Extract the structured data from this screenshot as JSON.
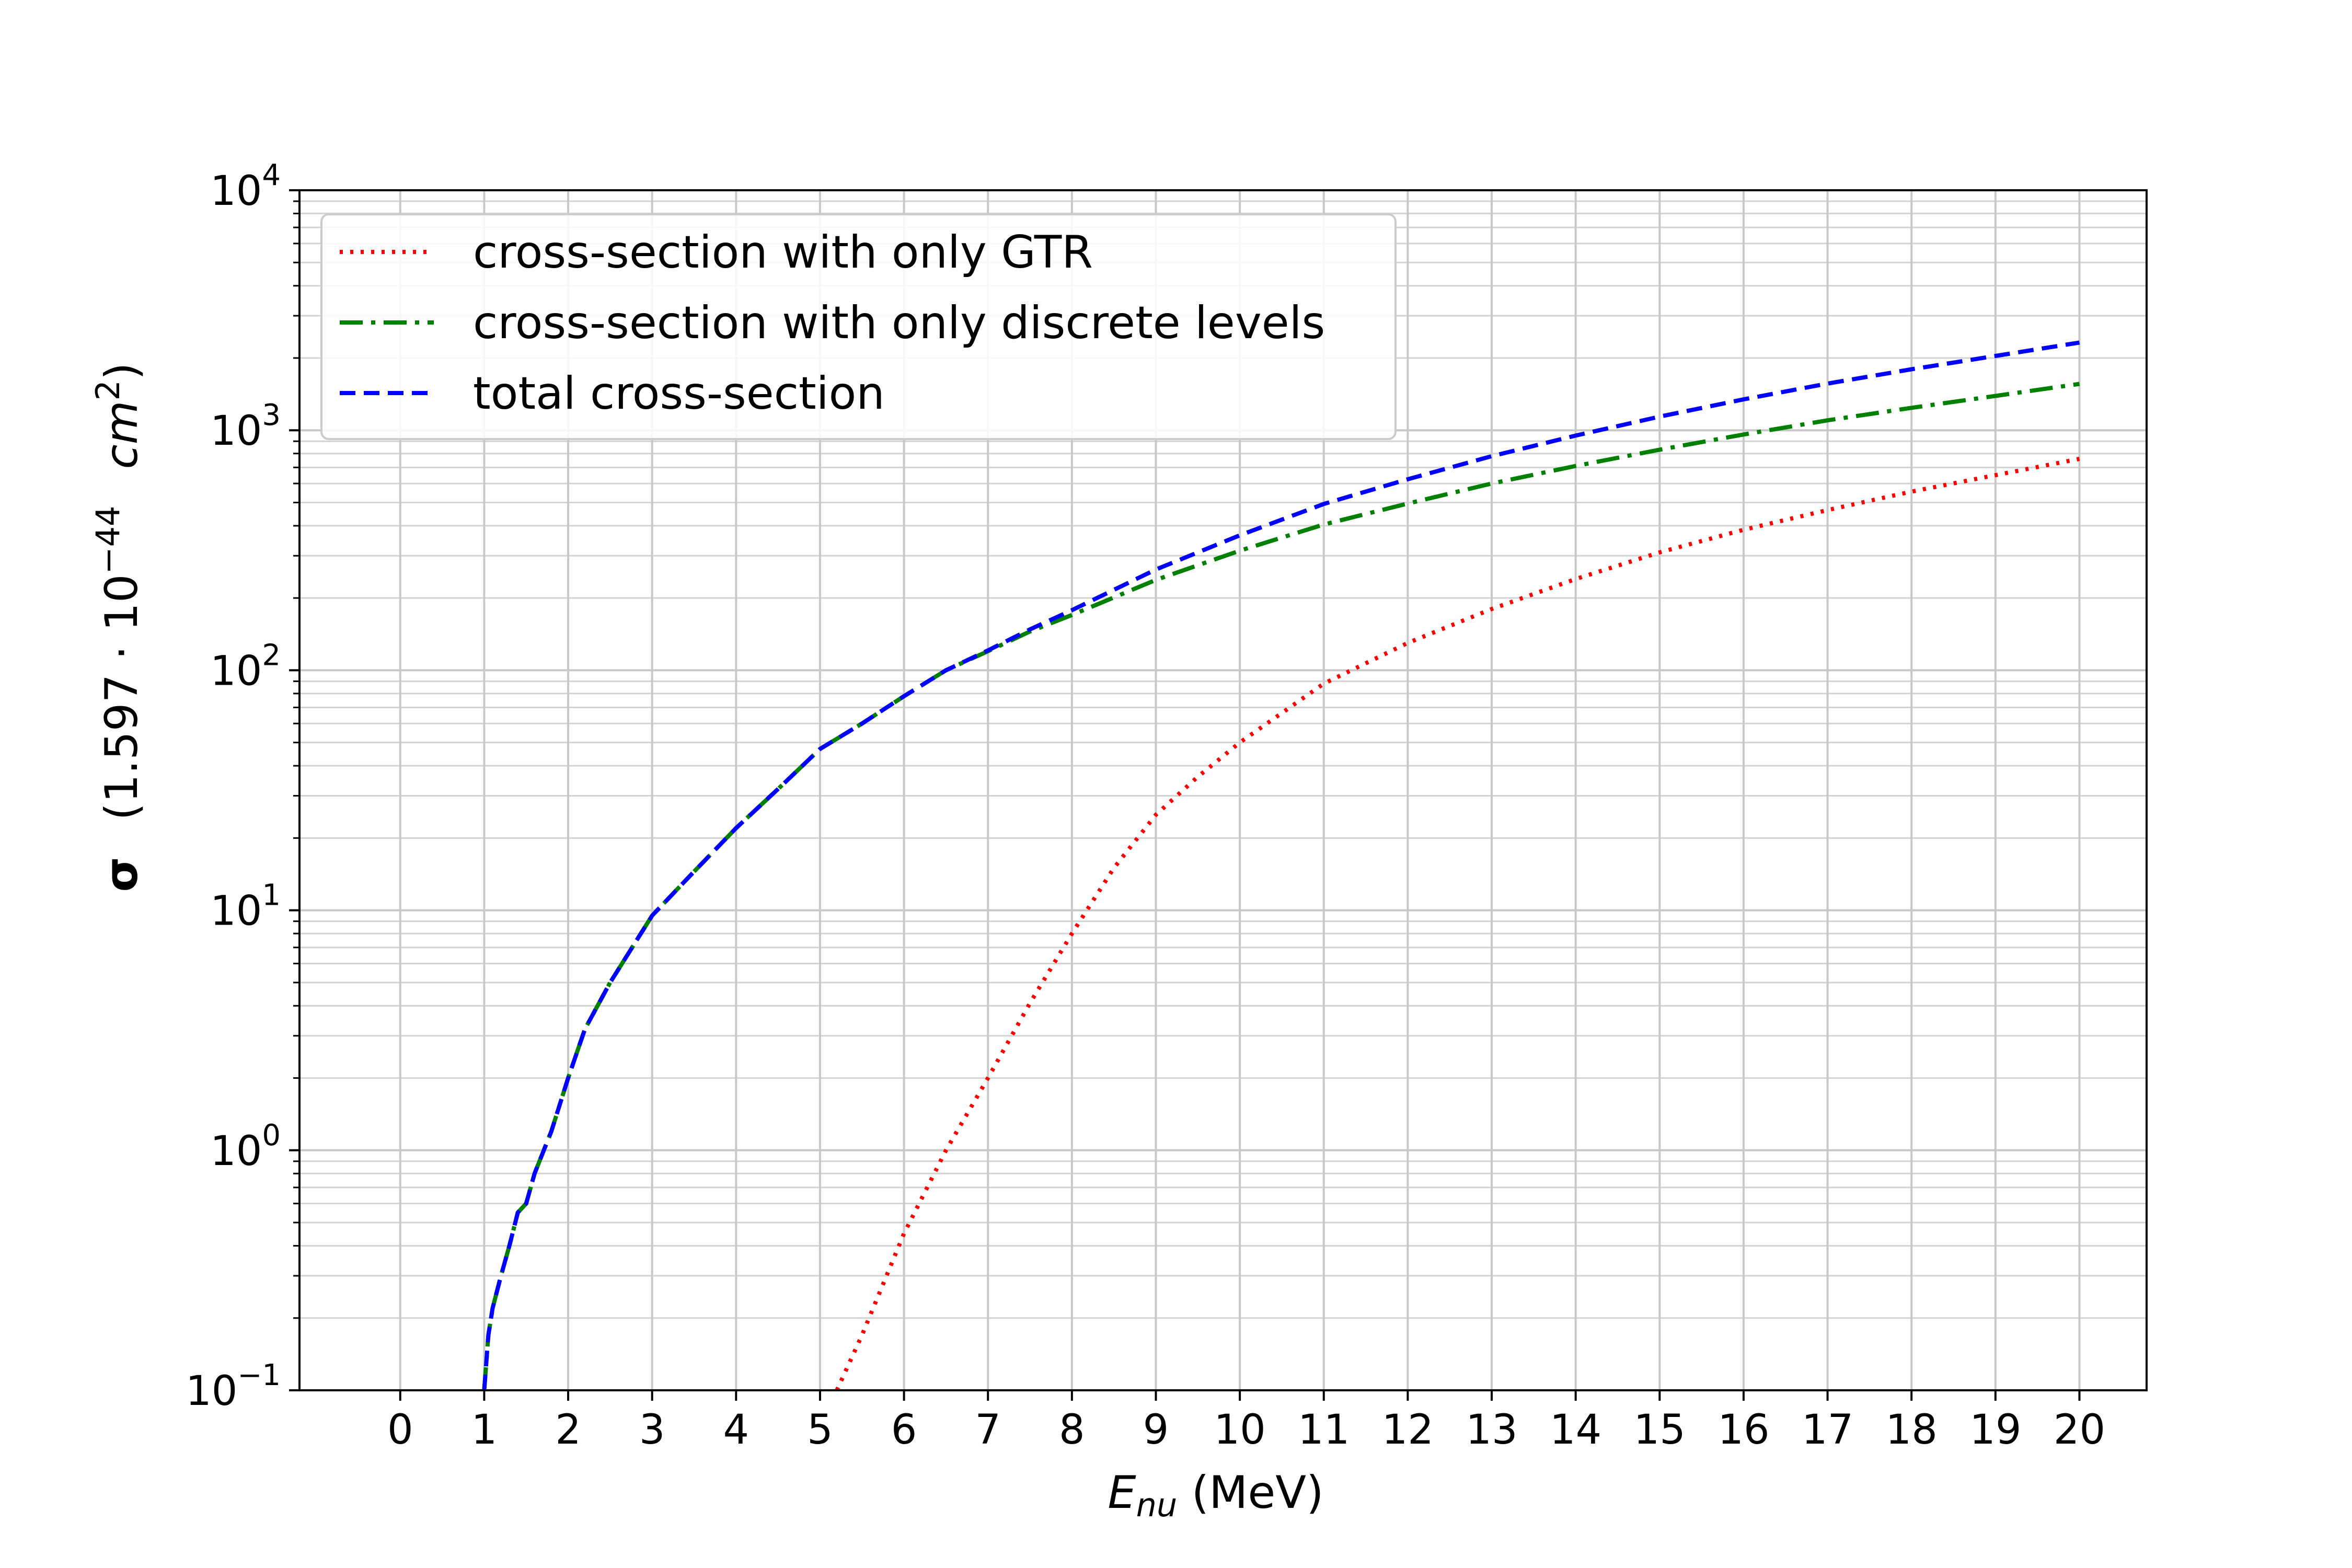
{
  "chart_data": {
    "type": "line",
    "yscale": "log",
    "xlabel": {
      "main": "E",
      "sub": "nu",
      "unit": " (MeV)"
    },
    "ylabel": {
      "symbol": "σ",
      "open": "(1.597 · 10",
      "exp": "−44",
      "unit": "cm",
      "unit_exp": "2",
      "close": ")"
    },
    "xlim": [
      -1.2,
      20.8
    ],
    "ylim": [
      0.1,
      10000
    ],
    "xticks": [
      0,
      1,
      2,
      3,
      4,
      5,
      6,
      7,
      8,
      9,
      10,
      11,
      12,
      13,
      14,
      15,
      16,
      17,
      18,
      19,
      20
    ],
    "yticks": [
      {
        "value": 0.1,
        "base": "10",
        "exp": "−1"
      },
      {
        "value": 1,
        "base": "10",
        "exp": "0"
      },
      {
        "value": 10,
        "base": "10",
        "exp": "1"
      },
      {
        "value": 100,
        "base": "10",
        "exp": "2"
      },
      {
        "value": 1000,
        "base": "10",
        "exp": "3"
      },
      {
        "value": 10000,
        "base": "10",
        "exp": "4"
      }
    ],
    "grid": true,
    "legend_position": "upper-left",
    "series": [
      {
        "name": "cross-section with only GTR",
        "color": "#ff0000",
        "style": "dotted",
        "x": [
          5.2,
          5.5,
          6.0,
          6.5,
          7.0,
          7.5,
          8.0,
          8.5,
          9.0,
          9.5,
          10.0,
          11.0,
          12.0,
          13.0,
          14.0,
          15.0,
          16.0,
          17.0,
          18.0,
          19.0,
          20.0
        ],
        "y": [
          0.1,
          0.17,
          0.45,
          1.0,
          2.0,
          4.1,
          8.0,
          15.0,
          25.0,
          36.0,
          50.0,
          88.0,
          130.0,
          180.0,
          240.0,
          310.0,
          385.0,
          465.0,
          555.0,
          650.0,
          760.0
        ]
      },
      {
        "name": "cross-section with only discrete levels",
        "color": "#008000",
        "style": "dashdot",
        "x": [
          1.0,
          1.05,
          1.1,
          1.2,
          1.3,
          1.4,
          1.5,
          1.6,
          1.8,
          2.0,
          2.2,
          2.5,
          3.0,
          3.5,
          4.0,
          4.5,
          5.0,
          5.5,
          6.0,
          6.5,
          7.0,
          7.5,
          8.0,
          9.0,
          10.0,
          11.0,
          12.0,
          13.0,
          14.0,
          15.0,
          16.0,
          17.0,
          18.0,
          19.0,
          20.0
        ],
        "y": [
          0.1,
          0.17,
          0.22,
          0.3,
          0.4,
          0.55,
          0.6,
          0.8,
          1.2,
          2.0,
          3.2,
          5.0,
          9.5,
          14.5,
          22.0,
          32.0,
          47.0,
          60.0,
          78.0,
          100.0,
          120.0,
          145.0,
          170.0,
          238.0,
          315.0,
          405.0,
          495.0,
          600.0,
          710.0,
          830.0,
          960.0,
          1100.0,
          1240.0,
          1390.0,
          1560.0
        ]
      },
      {
        "name": "total cross-section",
        "color": "#0000ff",
        "style": "dashed",
        "x": [
          1.0,
          1.05,
          1.1,
          1.2,
          1.3,
          1.4,
          1.5,
          1.6,
          1.8,
          2.0,
          2.2,
          2.5,
          3.0,
          3.5,
          4.0,
          4.5,
          5.0,
          5.5,
          6.0,
          6.5,
          7.0,
          7.5,
          8.0,
          9.0,
          10.0,
          11.0,
          12.0,
          13.0,
          14.0,
          15.0,
          16.0,
          17.0,
          18.0,
          19.0,
          20.0
        ],
        "y": [
          0.1,
          0.17,
          0.22,
          0.3,
          0.4,
          0.55,
          0.6,
          0.8,
          1.2,
          2.0,
          3.2,
          5.0,
          9.5,
          14.5,
          22.0,
          32.0,
          47.0,
          60.0,
          78.0,
          100.0,
          121.0,
          148.0,
          178.0,
          263.0,
          365.0,
          493.0,
          625.0,
          780.0,
          950.0,
          1140.0,
          1345.0,
          1565.0,
          1795.0,
          2040.0,
          2320.0
        ]
      }
    ]
  }
}
